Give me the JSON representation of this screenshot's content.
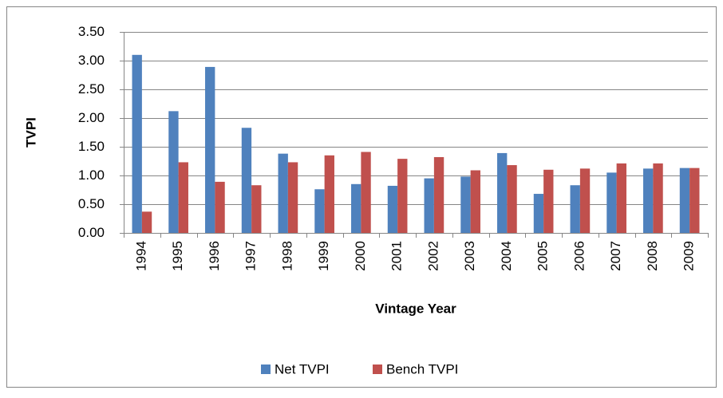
{
  "chart_data": {
    "type": "bar",
    "x_label": "Vintage Year",
    "y_label": "TVPI",
    "categories": [
      "1994",
      "1995",
      "1996",
      "1997",
      "1998",
      "1999",
      "2000",
      "2001",
      "2002",
      "2003",
      "2004",
      "2005",
      "2006",
      "2007",
      "2008",
      "2009"
    ],
    "series": [
      {
        "name": "Net TVPI",
        "color": "#4f81bd",
        "values": [
          3.1,
          2.12,
          2.89,
          1.83,
          1.38,
          0.76,
          0.85,
          0.82,
          0.95,
          0.98,
          1.39,
          0.68,
          0.83,
          1.05,
          1.12,
          1.13
        ]
      },
      {
        "name": "Bench TVPI",
        "color": "#c0504d",
        "values": [
          0.37,
          1.23,
          0.89,
          0.83,
          1.23,
          1.35,
          1.41,
          1.29,
          1.32,
          1.09,
          1.18,
          1.1,
          1.12,
          1.21,
          1.21,
          1.13
        ]
      }
    ],
    "ylim": [
      0,
      3.5
    ],
    "yticks": [
      {
        "value": 0,
        "label": "0.00"
      },
      {
        "value": 0.5,
        "label": "0.50"
      },
      {
        "value": 1,
        "label": "1.00"
      },
      {
        "value": 1.5,
        "label": "1.50"
      },
      {
        "value": 2,
        "label": "2.00"
      },
      {
        "value": 2.5,
        "label": "2.50"
      },
      {
        "value": 3,
        "label": "3.00"
      },
      {
        "value": 3.5,
        "label": "3.50"
      }
    ],
    "grid": true,
    "legend": "bottom"
  }
}
